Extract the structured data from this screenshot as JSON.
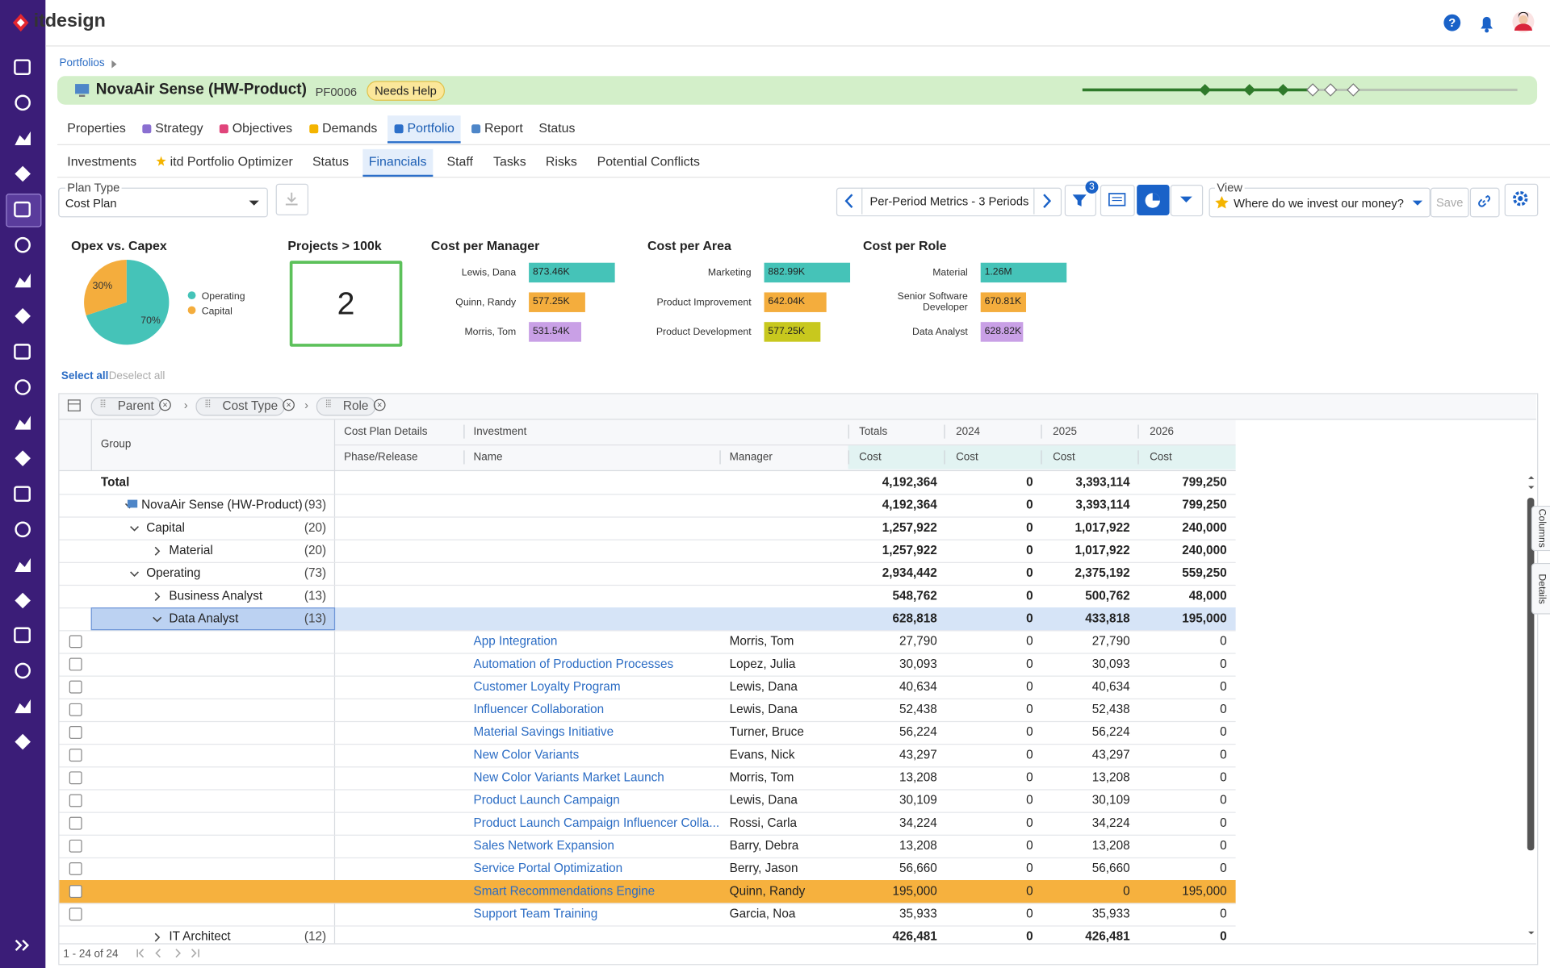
{
  "app": {
    "brand": "itdesign"
  },
  "breadcrumb": "Portfolios",
  "header": {
    "title": "NovaAir Sense (HW-Product)",
    "code": "PF0006",
    "status": "Needs Help"
  },
  "tabs": [
    {
      "label": "Properties"
    },
    {
      "label": "Strategy"
    },
    {
      "label": "Objectives"
    },
    {
      "label": "Demands"
    },
    {
      "label": "Portfolio",
      "active": true
    },
    {
      "label": "Report"
    },
    {
      "label": "Status"
    }
  ],
  "subtabs": [
    {
      "label": "Investments"
    },
    {
      "label": "itd Portfolio Optimizer"
    },
    {
      "label": "Status"
    },
    {
      "label": "Financials",
      "active": true
    },
    {
      "label": "Staff"
    },
    {
      "label": "Tasks"
    },
    {
      "label": "Risks"
    },
    {
      "label": "Potential Conflicts"
    }
  ],
  "toolbar": {
    "plan_type_label": "Plan Type",
    "plan_type": "Cost Plan",
    "period": "Per-Period Metrics - 3 Periods",
    "filter_count": "3",
    "view_label": "View",
    "view": "Where do we invest our money?",
    "save": "Save"
  },
  "widgets": {
    "opex_capex": {
      "title": "Opex vs. Capex",
      "series": [
        {
          "name": "Operating",
          "value": 70,
          "label": "70%",
          "color": "#45c3b8"
        },
        {
          "name": "Capital",
          "value": 30,
          "label": "30%",
          "color": "#f4ad3d"
        }
      ]
    },
    "projects": {
      "title": "Projects > 100k",
      "value": "2"
    },
    "bars": [
      {
        "title": "Cost per Manager",
        "items": [
          {
            "name": "Lewis, Dana",
            "value": 873.46,
            "label": "873.46K",
            "color": "#45c3b8"
          },
          {
            "name": "Quinn, Randy",
            "value": 577.25,
            "label": "577.25K",
            "color": "#f4ad3d"
          },
          {
            "name": "Morris, Tom",
            "value": 531.54,
            "label": "531.54K",
            "color": "#c9a0e6"
          }
        ]
      },
      {
        "title": "Cost per Area",
        "items": [
          {
            "name": "Marketing",
            "value": 882.99,
            "label": "882.99K",
            "color": "#45c3b8"
          },
          {
            "name": "Product Improvement",
            "value": 642.04,
            "label": "642.04K",
            "color": "#f4ad3d"
          },
          {
            "name": "Product Development",
            "value": 577.25,
            "label": "577.25K",
            "color": "#c8c81e"
          }
        ]
      },
      {
        "title": "Cost per Role",
        "items": [
          {
            "name": "Material",
            "value": 1260,
            "label": "1.26M",
            "color": "#45c3b8"
          },
          {
            "name": "Senior Software Developer",
            "value": 670.81,
            "label": "670.81K",
            "color": "#f4ad3d"
          },
          {
            "name": "Data Analyst",
            "value": 628.82,
            "label": "628.82K",
            "color": "#c9a0e6"
          }
        ]
      }
    ]
  },
  "selection": {
    "select_all": "Select all",
    "deselect_all": "Deselect all"
  },
  "grouping": [
    "Parent",
    "Cost Type",
    "Role"
  ],
  "table": {
    "group_header": "Group",
    "col_groups": [
      "Cost Plan Details",
      "Investment",
      "Totals",
      "2024",
      "2025",
      "2026"
    ],
    "columns": [
      "Phase/Release",
      "Name",
      "Manager",
      "Cost",
      "Cost",
      "Cost",
      "Cost"
    ],
    "rows": [
      {
        "label": "Total",
        "level": 0,
        "cells": [
          "4,192,364",
          "0",
          "3,393,114",
          "799,250"
        ]
      },
      {
        "label": "NovaAir Sense (HW-Product)",
        "count": "(93)",
        "level": 1,
        "expanded": true,
        "cells": [
          "4,192,364",
          "0",
          "3,393,114",
          "799,250"
        ]
      },
      {
        "label": "Capital",
        "count": "(20)",
        "level": 2,
        "expanded": true,
        "cells": [
          "1,257,922",
          "0",
          "1,017,922",
          "240,000"
        ]
      },
      {
        "label": "Material",
        "count": "(20)",
        "level": 3,
        "expanded": false,
        "cells": [
          "1,257,922",
          "0",
          "1,017,922",
          "240,000"
        ]
      },
      {
        "label": "Operating",
        "count": "(73)",
        "level": 2,
        "expanded": true,
        "cells": [
          "2,934,442",
          "0",
          "2,375,192",
          "559,250"
        ]
      },
      {
        "label": "Business Analyst",
        "count": "(13)",
        "level": 3,
        "expanded": false,
        "cells": [
          "548,762",
          "0",
          "500,762",
          "48,000"
        ]
      },
      {
        "label": "Data Analyst",
        "count": "(13)",
        "level": 3,
        "expanded": true,
        "selected": true,
        "cells": [
          "628,818",
          "0",
          "433,818",
          "195,000"
        ]
      },
      {
        "name": "App Integration",
        "manager": "Morris, Tom",
        "cells": [
          "27,790",
          "0",
          "27,790",
          "0"
        ]
      },
      {
        "name": "Automation of Production Processes",
        "manager": "Lopez, Julia",
        "cells": [
          "30,093",
          "0",
          "30,093",
          "0"
        ]
      },
      {
        "name": "Customer Loyalty Program",
        "manager": "Lewis, Dana",
        "cells": [
          "40,634",
          "0",
          "40,634",
          "0"
        ]
      },
      {
        "name": "Influencer Collaboration",
        "manager": "Lewis, Dana",
        "cells": [
          "52,438",
          "0",
          "52,438",
          "0"
        ]
      },
      {
        "name": "Material Savings Initiative",
        "manager": "Turner, Bruce",
        "cells": [
          "56,224",
          "0",
          "56,224",
          "0"
        ]
      },
      {
        "name": "New Color Variants",
        "manager": "Evans, Nick",
        "cells": [
          "43,297",
          "0",
          "43,297",
          "0"
        ]
      },
      {
        "name": "New Color Variants Market Launch",
        "manager": "Morris, Tom",
        "cells": [
          "13,208",
          "0",
          "13,208",
          "0"
        ]
      },
      {
        "name": "Product Launch Campaign",
        "manager": "Lewis, Dana",
        "cells": [
          "30,109",
          "0",
          "30,109",
          "0"
        ]
      },
      {
        "name": "Product Launch Campaign Influencer Colla...",
        "manager": "Rossi, Carla",
        "cells": [
          "34,224",
          "0",
          "34,224",
          "0"
        ]
      },
      {
        "name": "Sales Network Expansion",
        "manager": "Barry, Debra",
        "cells": [
          "13,208",
          "0",
          "13,208",
          "0"
        ]
      },
      {
        "name": "Service Portal Optimization",
        "manager": "Berry, Jason",
        "cells": [
          "56,660",
          "0",
          "56,660",
          "0"
        ]
      },
      {
        "name": "Smart Recommendations Engine",
        "manager": "Quinn, Randy",
        "highlight": true,
        "cells": [
          "195,000",
          "0",
          "0",
          "195,000"
        ]
      },
      {
        "name": "Support Team Training",
        "manager": "Garcia, Noa",
        "cells": [
          "35,933",
          "0",
          "35,933",
          "0"
        ]
      },
      {
        "label": "IT Architect",
        "count": "(12)",
        "level": 3,
        "expanded": false,
        "cells": [
          "426,481",
          "0",
          "426,481",
          "0"
        ]
      }
    ]
  },
  "pager": "1 - 24 of 24",
  "side_tabs": [
    "Columns",
    "Details"
  ]
}
